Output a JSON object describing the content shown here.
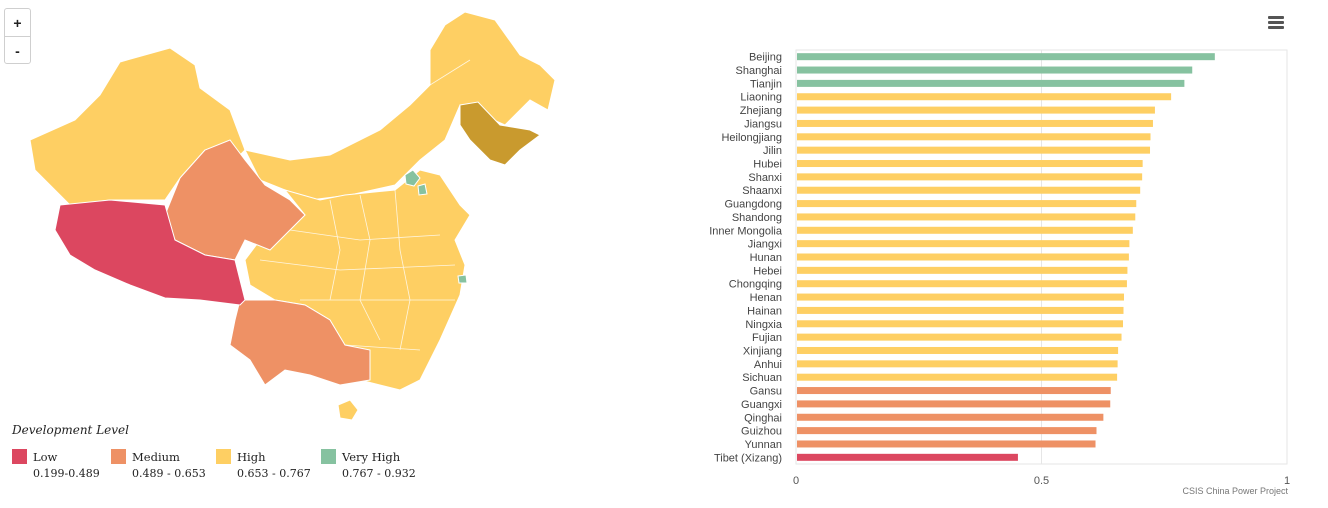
{
  "colors": {
    "low": "#dc4760",
    "medium": "#ee9165",
    "high": "#fecf63",
    "very_high": "#86c2a0",
    "highlight": "#c99a2e"
  },
  "map": {
    "zoom_in_label": "+",
    "zoom_out_label": "-"
  },
  "legend": {
    "title": "Development Level",
    "items": [
      {
        "label": "Low",
        "range": "0.199-0.489",
        "color": "#dc4760"
      },
      {
        "label": "Medium",
        "range": "0.489 - 0.653",
        "color": "#ee9165"
      },
      {
        "label": "High",
        "range": "0.653 - 0.767",
        "color": "#fecf63"
      },
      {
        "label": "Very High",
        "range": "0.767 - 0.932",
        "color": "#86c2a0"
      }
    ]
  },
  "menu_icon": "hamburger-menu-icon",
  "credits": "CSIS China Power Project",
  "chart_data": {
    "type": "bar",
    "orientation": "horizontal",
    "categories": [
      "Beijing",
      "Shanghai",
      "Tianjin",
      "Liaoning",
      "Zhejiang",
      "Jiangsu",
      "Heilongjiang",
      "Jilin",
      "Hubei",
      "Shanxi",
      "Shaanxi",
      "Guangdong",
      "Shandong",
      "Inner Mongolia",
      "Jiangxi",
      "Hunan",
      "Hebei",
      "Chongqing",
      "Henan",
      "Hainan",
      "Ningxia",
      "Fujian",
      "Xinjiang",
      "Anhui",
      "Sichuan",
      "Gansu",
      "Guangxi",
      "Qinghai",
      "Guizhou",
      "Yunnan",
      "Tibet (Xizang)"
    ],
    "values": [
      0.853,
      0.807,
      0.791,
      0.764,
      0.731,
      0.727,
      0.722,
      0.721,
      0.706,
      0.705,
      0.701,
      0.693,
      0.691,
      0.686,
      0.679,
      0.678,
      0.675,
      0.674,
      0.668,
      0.667,
      0.666,
      0.663,
      0.656,
      0.655,
      0.654,
      0.641,
      0.64,
      0.626,
      0.612,
      0.61,
      0.452
    ],
    "levels": [
      "very_high",
      "very_high",
      "very_high",
      "high",
      "high",
      "high",
      "high",
      "high",
      "high",
      "high",
      "high",
      "high",
      "high",
      "high",
      "high",
      "high",
      "high",
      "high",
      "high",
      "high",
      "high",
      "high",
      "high",
      "high",
      "high",
      "medium",
      "medium",
      "medium",
      "medium",
      "medium",
      "low"
    ],
    "xlim": [
      0,
      1
    ],
    "xticks": [
      "0",
      "0.5",
      "1"
    ],
    "grid": true
  }
}
